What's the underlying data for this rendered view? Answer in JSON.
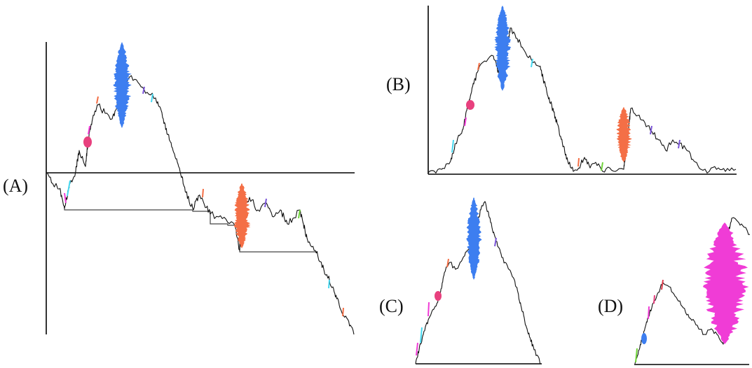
{
  "panels": [
    {
      "id": "A",
      "label": "(A)"
    },
    {
      "id": "B",
      "label": "(B)"
    },
    {
      "id": "C",
      "label": "(C)"
    },
    {
      "id": "D",
      "label": "(D)"
    }
  ],
  "colors": {
    "blue": "#3d7ef0",
    "orange": "#f46f46",
    "pink": "#e8407e",
    "magenta": "#f03cd6",
    "cyan": "#46d8f0",
    "green": "#6fd43a",
    "purple": "#7a54d8",
    "trace": "#111111",
    "axis": "#000000"
  }
}
